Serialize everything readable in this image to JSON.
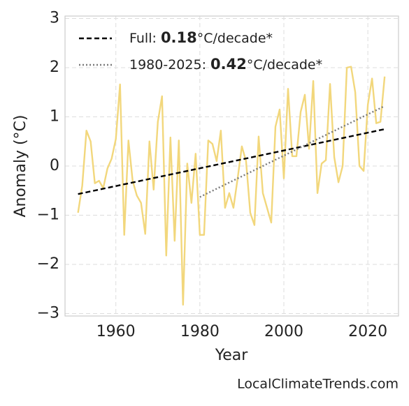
{
  "chart_data": {
    "type": "line",
    "xlabel": "Year",
    "ylabel": "Anomaly (°C)",
    "source": "LocalClimateTrends.com",
    "xlim": [
      1947.9,
      2027.3
    ],
    "ylim": [
      -3.05,
      3.05
    ],
    "xticks": [
      1960,
      1980,
      2000,
      2020
    ],
    "yticks": [
      {
        "value": -3,
        "label": "−3"
      },
      {
        "value": -2,
        "label": "−2"
      },
      {
        "value": -1,
        "label": "−1"
      },
      0,
      1,
      2,
      3
    ],
    "grid": true,
    "legend": "upper left",
    "series": [
      {
        "color": "#f2d77c",
        "x": [
          1951,
          1952,
          1953,
          1954,
          1955,
          1956,
          1957,
          1958,
          1959,
          1960,
          1961,
          1962,
          1963,
          1964,
          1965,
          1966,
          1967,
          1968,
          1969,
          1970,
          1971,
          1972,
          1973,
          1974,
          1975,
          1976,
          1977,
          1978,
          1979,
          1980,
          1981,
          1982,
          1983,
          1984,
          1985,
          1986,
          1987,
          1988,
          1989,
          1990,
          1991,
          1992,
          1993,
          1994,
          1995,
          1996,
          1997,
          1998,
          1999,
          2000,
          2001,
          2002,
          2003,
          2004,
          2005,
          2006,
          2007,
          2008,
          2009,
          2010,
          2011,
          2012,
          2013,
          2014,
          2015,
          2016,
          2017,
          2018,
          2019,
          2020,
          2021,
          2022,
          2023,
          2024
        ],
        "values": [
          -0.95,
          -0.4,
          0.72,
          0.5,
          -0.35,
          -0.3,
          -0.45,
          -0.05,
          0.15,
          0.55,
          1.66,
          -1.4,
          0.52,
          -0.3,
          -0.6,
          -0.75,
          -1.38,
          0.5,
          -0.48,
          0.9,
          1.42,
          -1.82,
          0.58,
          -1.52,
          0.52,
          -2.82,
          0.05,
          -0.75,
          0.25,
          -1.4,
          -1.4,
          0.52,
          0.45,
          0.1,
          0.72,
          -0.85,
          -0.55,
          -0.85,
          -0.25,
          0.4,
          0.1,
          -0.95,
          -1.2,
          0.6,
          -0.55,
          -0.85,
          -1.15,
          0.8,
          1.15,
          -0.25,
          1.57,
          0.2,
          0.2,
          1.1,
          1.45,
          0.35,
          1.73,
          -0.55,
          0.05,
          0.12,
          1.67,
          0.18,
          -0.33,
          0.0,
          2.0,
          2.02,
          1.5,
          0.0,
          -0.1,
          1.25,
          1.78,
          0.87,
          0.9,
          1.82
        ]
      },
      {
        "name": "Full: ",
        "rate": 0.18,
        "unit": "°C/decade*",
        "color": "#000000",
        "dash": "7 4",
        "x": [
          1951,
          2024
        ],
        "values": [
          -0.57,
          0.75
        ]
      },
      {
        "name": "1980-2025: ",
        "rate": 0.42,
        "unit": "°C/decade*",
        "color": "#7a7a7a",
        "dash": "2 3",
        "x": [
          1980,
          2024
        ],
        "values": [
          -0.63,
          1.22
        ]
      }
    ]
  }
}
